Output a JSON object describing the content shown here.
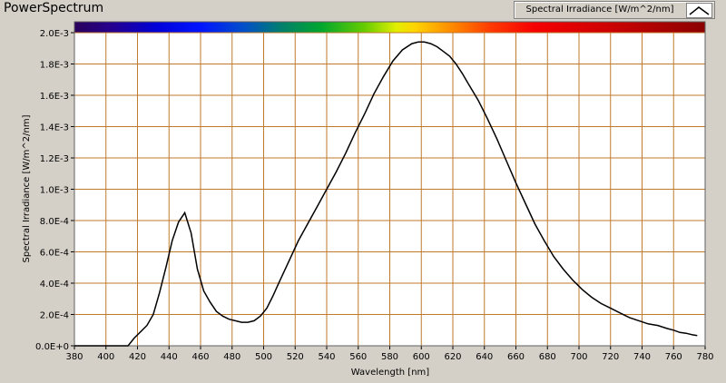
{
  "window": {
    "title": "PowerSpectrum"
  },
  "legend": {
    "label": "Spectral Irradiance [W/m^2/nm]"
  },
  "colors": {
    "plot_background": "#ffffff",
    "grid": "#c07a2c",
    "line": "#000000",
    "panel": "#d4d0c8"
  },
  "chart_data": {
    "type": "line",
    "title": "PowerSpectrum",
    "xlabel": "Wavelength [nm]",
    "ylabel": "Spectral Irradiance [W/m^2/nm]",
    "xlim": [
      380,
      780
    ],
    "ylim": [
      0,
      0.002
    ],
    "x_ticks": [
      380,
      400,
      420,
      440,
      460,
      480,
      500,
      520,
      540,
      560,
      580,
      600,
      620,
      640,
      660,
      680,
      700,
      720,
      740,
      760,
      780
    ],
    "x_tick_labels": [
      "380",
      "400",
      "420",
      "440",
      "460",
      "480",
      "500",
      "520",
      "540",
      "560",
      "580",
      "600",
      "620",
      "640",
      "660",
      "680",
      "700",
      "720",
      "740",
      "760",
      "780"
    ],
    "y_ticks": [
      0,
      0.0002,
      0.0004,
      0.0006,
      0.0008,
      0.001,
      0.0012,
      0.0014,
      0.0016,
      0.0018,
      0.002
    ],
    "y_tick_labels": [
      "0.0E+0",
      "2.0E-4",
      "4.0E-4",
      "6.0E-4",
      "8.0E-4",
      "1.0E-3",
      "1.2E-3",
      "1.4E-3",
      "1.6E-3",
      "1.8E-3",
      "2.0E-3"
    ],
    "grid": true,
    "legend_position": "top-right",
    "spectrum_bar": true,
    "series": [
      {
        "name": "Spectral Irradiance [W/m^2/nm]",
        "color": "#000000",
        "x": [
          380,
          390,
          400,
          410,
          414,
          418,
          422,
          426,
          430,
          434,
          438,
          442,
          446,
          450,
          454,
          458,
          462,
          466,
          470,
          474,
          478,
          482,
          486,
          490,
          494,
          498,
          502,
          506,
          510,
          516,
          522,
          528,
          534,
          540,
          546,
          552,
          558,
          564,
          570,
          576,
          582,
          588,
          594,
          598,
          602,
          606,
          610,
          614,
          618,
          622,
          626,
          630,
          636,
          642,
          648,
          654,
          660,
          666,
          672,
          678,
          684,
          690,
          696,
          702,
          708,
          714,
          720,
          726,
          732,
          738,
          744,
          750,
          756,
          760,
          764,
          768,
          772,
          775
        ],
        "y": [
          0.0,
          0.0,
          0.0,
          0.0,
          0.0,
          5e-05,
          9e-05,
          0.00013,
          0.0002,
          0.00034,
          0.0005,
          0.00067,
          0.00079,
          0.00085,
          0.00072,
          0.00049,
          0.00035,
          0.00028,
          0.00022,
          0.00019,
          0.00017,
          0.00016,
          0.00015,
          0.00015,
          0.00016,
          0.00019,
          0.00024,
          0.00032,
          0.00041,
          0.00054,
          0.00067,
          0.00078,
          0.00089,
          0.001,
          0.00111,
          0.00123,
          0.00136,
          0.00148,
          0.00161,
          0.00172,
          0.00182,
          0.00189,
          0.00193,
          0.00194,
          0.00194,
          0.00193,
          0.00191,
          0.00188,
          0.00185,
          0.0018,
          0.00174,
          0.00167,
          0.00157,
          0.00145,
          0.00132,
          0.00118,
          0.00104,
          0.00091,
          0.00078,
          0.00067,
          0.00057,
          0.00049,
          0.00042,
          0.00036,
          0.00031,
          0.00027,
          0.00024,
          0.00021,
          0.00018,
          0.00016,
          0.00014,
          0.00013,
          0.00011,
          0.0001,
          8.5e-05,
          8e-05,
          7e-05,
          6.5e-05
        ]
      }
    ]
  }
}
